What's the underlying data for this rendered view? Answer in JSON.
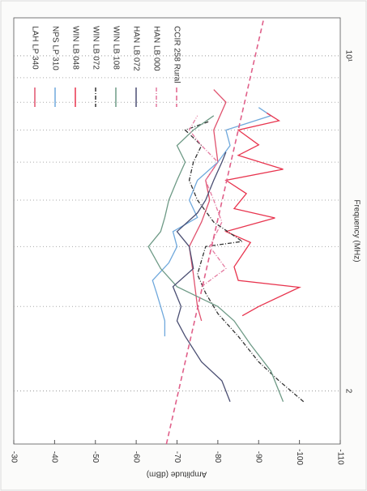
{
  "chart_data": {
    "type": "line",
    "xlabel": "Frequency (MHz)",
    "ylabel": "Amplitude (dBm)",
    "xscale": "log",
    "xlim": [
      1.55,
      12
    ],
    "xticks": [
      2,
      {
        "value": 10,
        "label": "10¹"
      }
    ],
    "xminor": [
      3,
      4,
      5,
      6,
      7,
      8,
      9
    ],
    "ylim": [
      -30,
      -110
    ],
    "yticks": [
      -30,
      -40,
      -50,
      -60,
      -70,
      -80,
      -90,
      -100,
      -110
    ],
    "grid": true,
    "series": [
      {
        "name": "LAH LP 340",
        "color": "#e0526e",
        "dash": "solid",
        "x": [
          2.8,
          3.0,
          3.5,
          4.0,
          4.5,
          5.0,
          5.5,
          6.0,
          7.0,
          8.0,
          8.5
        ],
        "values": [
          -76,
          -75,
          -74,
          -73,
          -76,
          -78,
          -77,
          -80,
          -79,
          -82,
          -79
        ]
      },
      {
        "name": "NPS LP 310",
        "color": "#6fa8dc",
        "dash": "solid",
        "x": [
          2.6,
          2.8,
          3.0,
          3.2,
          3.4,
          3.7,
          4.0,
          4.3,
          4.6,
          5.0,
          5.5,
          6.0,
          6.5,
          7.0,
          7.5,
          7.8
        ],
        "values": [
          -67,
          -67,
          -66,
          -65,
          -64,
          -68,
          -70,
          -69,
          -75,
          -73,
          -75,
          -80,
          -83,
          -82,
          -93,
          -90
        ]
      },
      {
        "name": "WIN LB 048",
        "color": "#e8344e",
        "dash": "solid",
        "x": [
          2.87,
          3.0,
          3.29,
          3.4,
          3.63,
          4.08,
          4.3,
          4.59,
          4.8,
          5.16,
          5.5,
          5.8,
          6.2,
          6.52,
          7.0,
          7.32,
          7.6
        ],
        "values": [
          -86,
          -90,
          -100,
          -85,
          -84,
          -88,
          -82,
          -94,
          -84,
          -87,
          -82,
          -96,
          -85,
          -90,
          -85,
          -95,
          -92
        ]
      },
      {
        "name": "WIN LB 072",
        "color": "#333333",
        "dash": "dashdot",
        "x": [
          1.9,
          2.1,
          2.3,
          2.6,
          2.9,
          3.2,
          3.5,
          4.0,
          4.1,
          4.5,
          5.0,
          5.5,
          6.0,
          6.5,
          7.0,
          7.3
        ],
        "values": [
          -101,
          -95,
          -90,
          -85,
          -80,
          -77,
          -75,
          -77,
          -86,
          -79,
          -75,
          -73,
          -74,
          -76,
          -72,
          -78
        ]
      },
      {
        "name": "WIN LB 108",
        "color": "#6e9a86",
        "dash": "solid",
        "x": [
          1.9,
          2.2,
          2.5,
          2.8,
          3.0,
          3.3,
          3.6,
          4.0,
          4.3,
          4.6,
          5.0,
          5.5,
          6.0,
          6.5,
          7.0,
          7.5
        ],
        "values": [
          -96,
          -93,
          -88,
          -84,
          -80,
          -70,
          -66,
          -63,
          -66,
          -67,
          -68,
          -70,
          -72,
          -70,
          -74,
          -79
        ]
      },
      {
        "name": "HAN LB 072",
        "color": "#4a4e72",
        "dash": "solid",
        "x": [
          1.9,
          2.1,
          2.3,
          2.6,
          2.8,
          3.0,
          3.3,
          3.6,
          4.0,
          4.3,
          4.7,
          5.0,
          5.5,
          6.0,
          6.3
        ],
        "values": [
          -83,
          -81,
          -76,
          -72,
          -70,
          -71,
          -69,
          -74,
          -73,
          -70,
          -75,
          -77,
          -79,
          -81,
          -82
        ]
      },
      {
        "name": "HAN LB 000",
        "color": "#e47aa0",
        "dash": "dashdot",
        "x": [
          3.3,
          3.6,
          4.0,
          4.5,
          5.0,
          5.5,
          6.0,
          6.5,
          7.0,
          7.5
        ],
        "values": [
          -76,
          -82,
          -78,
          -81,
          -79,
          -77,
          -80,
          -76,
          -73,
          -75
        ]
      },
      {
        "name": "CCIR 258 Rural",
        "color": "#e0608a",
        "dash": "dashed",
        "x": [
          1.55,
          12
        ],
        "values": [
          -67.4,
          -91.3
        ]
      }
    ]
  }
}
